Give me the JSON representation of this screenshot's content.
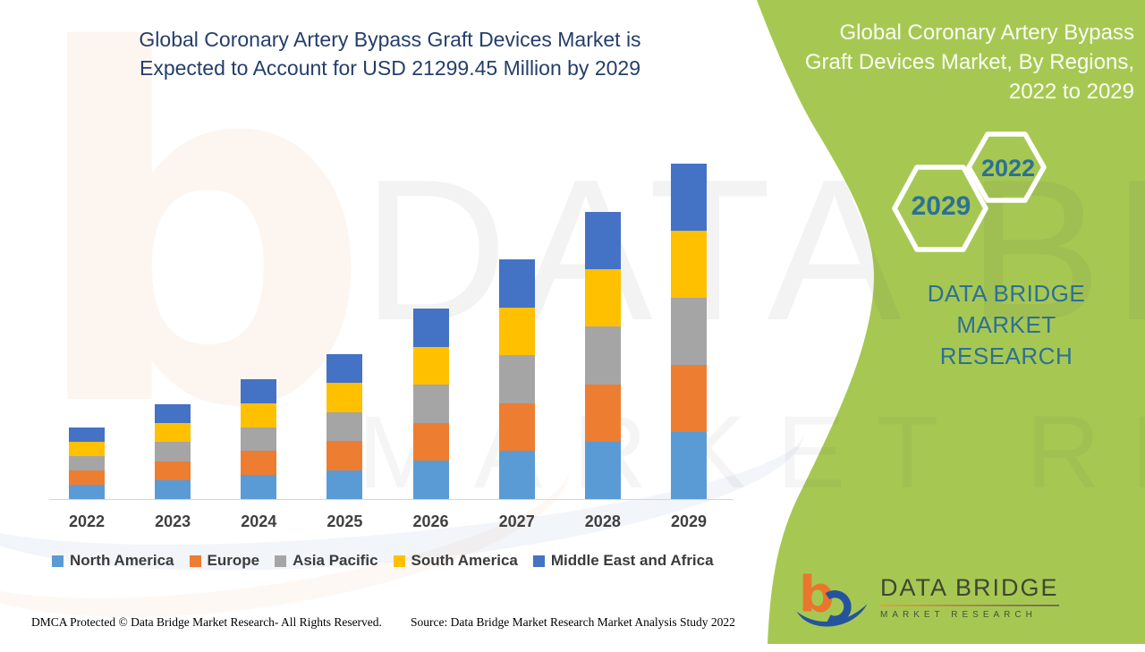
{
  "header": {
    "title_line1": "Global Coronary Artery Bypass Graft Devices Market is",
    "title_line2": "Expected to Account for USD 21299.45 Million by 2029"
  },
  "side_panel": {
    "bg_color": "#a6c853",
    "title_line1": "Global Coronary Artery Bypass",
    "title_line2": "Graft Devices Market, By Regions,",
    "title_line3": "2022 to 2029",
    "hexagons": [
      {
        "label": "2022"
      },
      {
        "label": "2029"
      }
    ],
    "brand_line1": "DATA BRIDGE MARKET",
    "brand_line2": "RESEARCH",
    "accent_text_color": "#2d7095"
  },
  "watermark": {
    "line1": "DATA BRIDGE",
    "line2": "MARKET RESEARCH"
  },
  "chart_data": {
    "type": "bar",
    "stacked": true,
    "title": "Global Coronary Artery Bypass Graft Devices Market, By Regions, 2022 to 2029",
    "unit": "USD Million",
    "categories": [
      "2022",
      "2023",
      "2024",
      "2025",
      "2026",
      "2027",
      "2028",
      "2029"
    ],
    "totals_usd_million_estimated": [
      4540,
      6020,
      7610,
      9200,
      12100,
      15220,
      18230,
      21299.45
    ],
    "series": [
      {
        "name": "North America",
        "color": "#5b9bd5",
        "values": [
          908,
          1204,
          1522,
          1840,
          2420,
          3044,
          3646,
          4259.89
        ]
      },
      {
        "name": "Europe",
        "color": "#ed7d31",
        "values": [
          908,
          1204,
          1522,
          1840,
          2420,
          3044,
          3646,
          4259.89
        ]
      },
      {
        "name": "Asia Pacific",
        "color": "#a5a5a5",
        "values": [
          908,
          1204,
          1522,
          1840,
          2420,
          3044,
          3646,
          4259.89
        ]
      },
      {
        "name": "South America",
        "color": "#ffc000",
        "values": [
          908,
          1204,
          1522,
          1840,
          2420,
          3044,
          3646,
          4259.89
        ]
      },
      {
        "name": "Middle East and Africa",
        "color": "#4472c4",
        "values": [
          908,
          1204,
          1522,
          1840,
          2420,
          3044,
          3646,
          4259.89
        ]
      }
    ],
    "ylim": [
      0,
      22000
    ],
    "grid": false,
    "axis_labels_shown": false,
    "legend_position": "bottom",
    "note": "No numeric value axis is shown; values estimated from bar heights anchored to the stated USD 21299.45 Million total for 2029; the five regional segments appear equal in each year."
  },
  "logo": {
    "name": "DATA BRIDGE",
    "sub": "MARKET RESEARCH"
  },
  "footer": {
    "left": "DMCA Protected © Data Bridge Market Research- All Rights Reserved.",
    "right": "Source: Data Bridge Market Research Market Analysis Study 2022"
  }
}
